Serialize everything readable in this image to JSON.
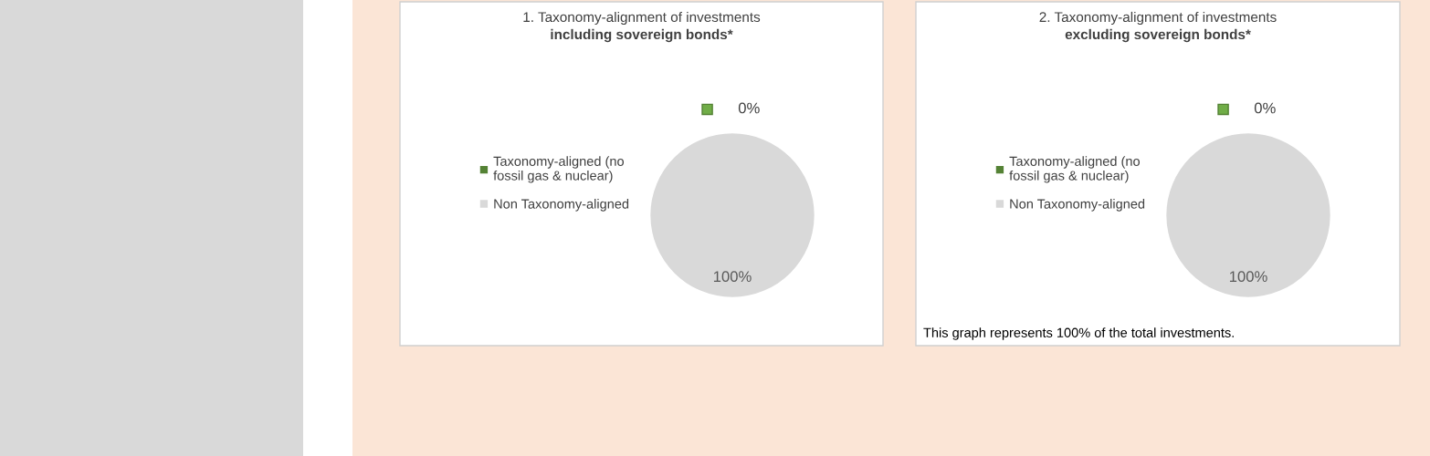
{
  "chart_data": [
    {
      "type": "pie",
      "title": "1. Taxonomy-alignment of investments\nincluding sovereign bonds*",
      "categories": [
        "Taxonomy-aligned (no fossil gas & nuclear)",
        "Non Taxonomy-aligned"
      ],
      "values": [
        0,
        100
      ],
      "colors": [
        "#548235",
        "#d9d9d9"
      ],
      "value_labels": [
        "0%",
        "100%"
      ],
      "legend": "left"
    },
    {
      "type": "pie",
      "title": "2. Taxonomy-alignment of investments\nexcluding sovereign bonds*",
      "categories": [
        "Taxonomy-aligned (no fossil gas & nuclear)",
        "Non Taxonomy-aligned"
      ],
      "values": [
        0,
        100
      ],
      "colors": [
        "#548235",
        "#d9d9d9"
      ],
      "value_labels": [
        "0%",
        "100%"
      ],
      "legend": "left",
      "annotations": [
        "This graph represents 100% of the total investments."
      ]
    }
  ]
}
